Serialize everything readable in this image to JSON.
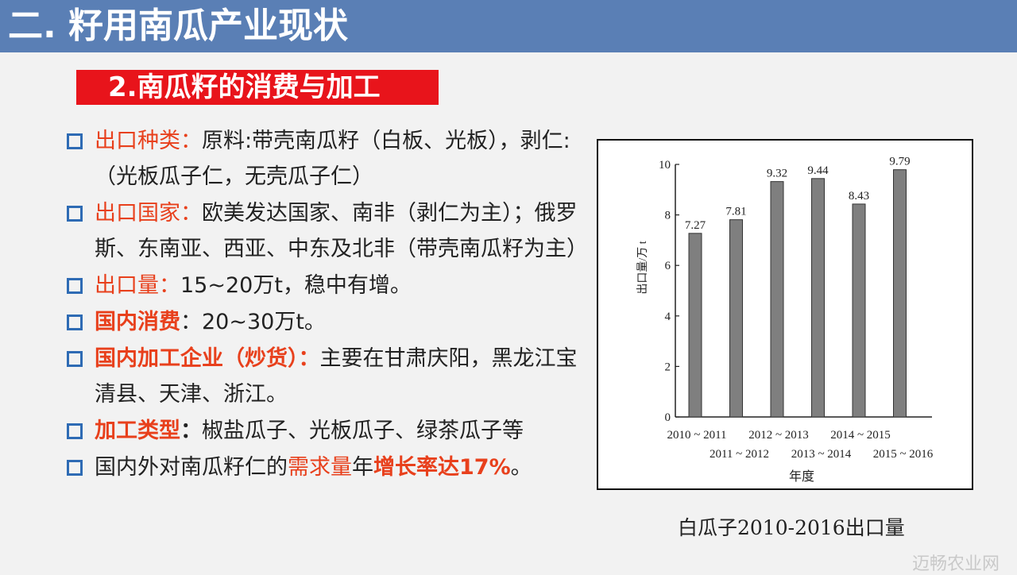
{
  "header": {
    "title": "二. 籽用南瓜产业现状"
  },
  "subtitle": "2.南瓜籽的消费与加工",
  "bullets": [
    {
      "label": "出口种类",
      "sep": "：",
      "text": "原料:带壳南瓜籽（白板、光板），剥仁:（光板瓜子仁，无壳瓜子仁）"
    },
    {
      "label": "出口国家",
      "sep": "：",
      "text": "欧美发达国家、南非（剥仁为主）；俄罗斯、东南亚、西亚、中东及北非（带壳南瓜籽为主）"
    },
    {
      "label": "出口量",
      "sep": "：",
      "text": "15~20万t，稳中有增。"
    },
    {
      "label": "国内消费",
      "sep": "：",
      "text": "20~30万t。"
    },
    {
      "label": "国内加工企业（炒货）：",
      "sep": "",
      "text": "主要在甘肃庆阳，黑龙江宝清县、天津、浙江。"
    },
    {
      "label": "加工类型",
      "sep": "：",
      "text": "椒盐瓜子、光板瓜子、绿茶瓜子等"
    },
    {
      "part1": "国内外对南瓜籽仁的",
      "part2": "需求量",
      "part3": "年",
      "part4": "增长率达17%",
      "part5": "。"
    }
  ],
  "colors": {
    "header": "#5a7fb5",
    "accent": "#e8401c",
    "subtitle_bg": "#e8141b",
    "bullet_box": "#2e6bb4",
    "bar": "#7f7f7f"
  },
  "chart_data": {
    "type": "bar",
    "categories": [
      "2010 ~ 2011",
      "2011 ~ 2012",
      "2012 ~ 2013",
      "2013 ~ 2014",
      "2014 ~ 2015",
      "2015 ~ 2016"
    ],
    "values": [
      7.27,
      7.81,
      9.32,
      9.44,
      8.43,
      9.79
    ],
    "value_labels": [
      "7.27",
      "7.81",
      "9.32",
      "9.44",
      "8.43",
      "9.79"
    ],
    "ylim": [
      0,
      10
    ],
    "yticks": [
      0,
      2,
      4,
      6,
      8,
      10
    ],
    "ylabel": "出口量/万 t",
    "xlabel": "年度",
    "title": "",
    "grid": false
  },
  "caption": "白瓜子2010-2016出口量",
  "watermark": "迈畅农业网"
}
